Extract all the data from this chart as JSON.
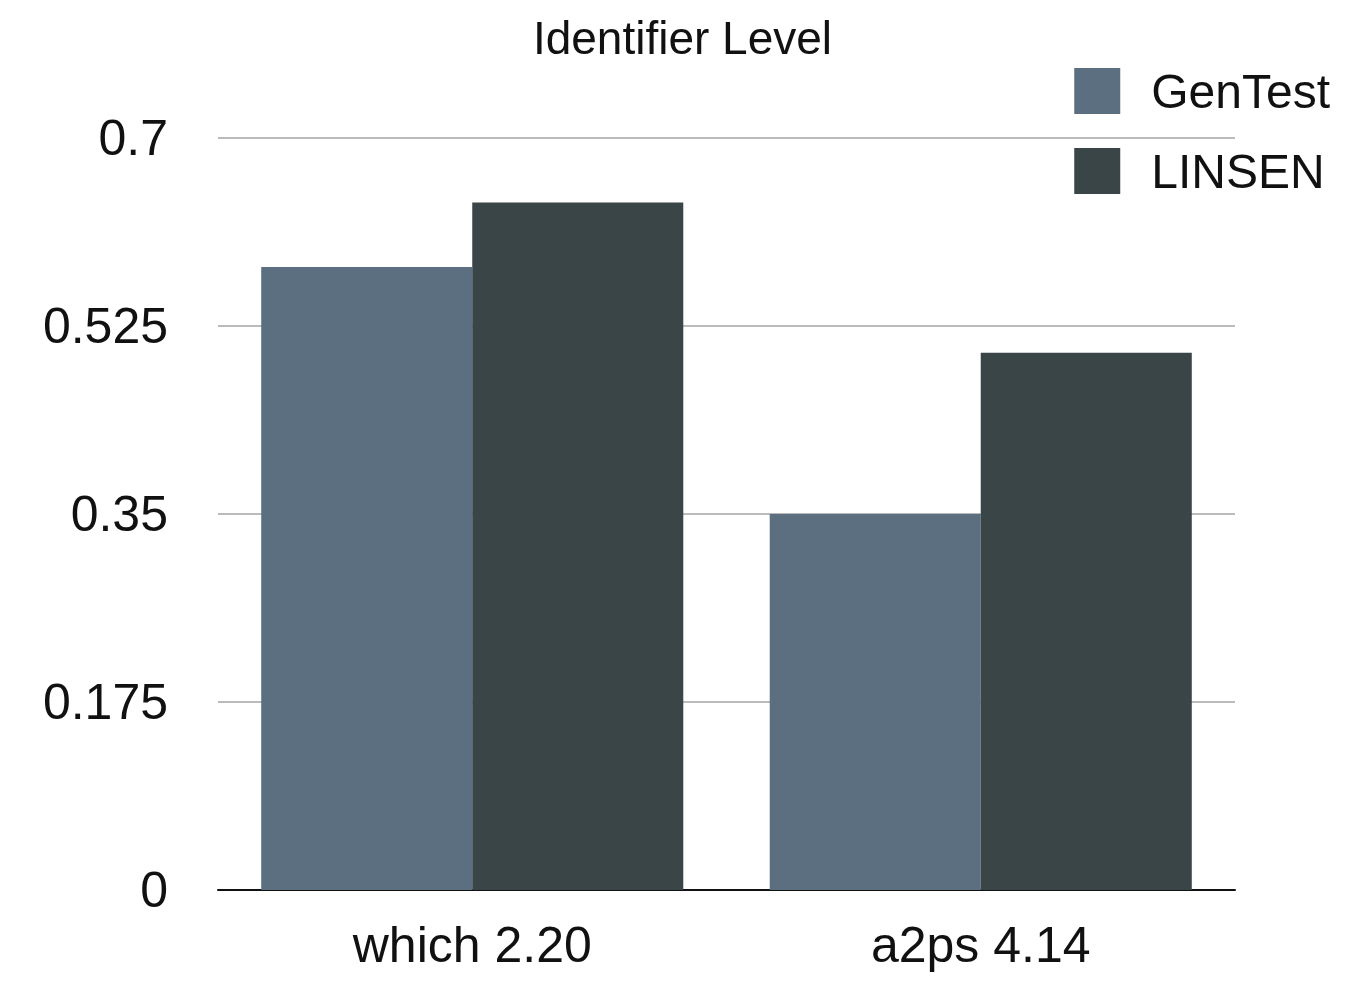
{
  "chart_data": {
    "type": "bar",
    "title": "Identifier Level",
    "categories": [
      "which 2.20",
      "a2ps 4.14"
    ],
    "series": [
      {
        "name": "GenTest",
        "color": "#5b6f80",
        "values": [
          0.58,
          0.35
        ]
      },
      {
        "name": "LINSEN",
        "color": "#3a4547",
        "values": [
          0.64,
          0.5
        ]
      }
    ],
    "ylim": [
      0,
      0.7
    ],
    "yticks": [
      0,
      0.175,
      0.35,
      0.525,
      0.7
    ],
    "grid": "y",
    "legend": "top right"
  }
}
